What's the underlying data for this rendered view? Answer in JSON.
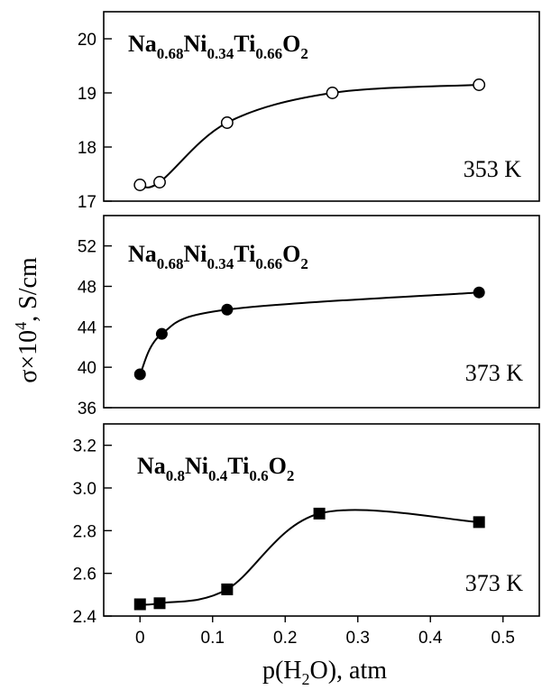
{
  "chart_data": [
    {
      "type": "scatter",
      "compound": {
        "base": [
          "Na",
          "Ni",
          "Ti",
          "O"
        ],
        "subs": [
          "0.68",
          "0.34",
          "0.66",
          "2"
        ]
      },
      "annotation": "353 K",
      "marker": "open-circle",
      "x": [
        0.0,
        0.027,
        0.12,
        0.265,
        0.467
      ],
      "y": [
        17.3,
        17.35,
        18.45,
        19.0,
        19.15
      ],
      "fit_curve": true,
      "xlim": [
        -0.05,
        0.55
      ],
      "ylim": [
        17,
        20.5
      ],
      "yticks": [
        17,
        18,
        19,
        20
      ],
      "ytick_labels": [
        "17",
        "18",
        "19",
        "20"
      ]
    },
    {
      "type": "scatter",
      "compound": {
        "base": [
          "Na",
          "Ni",
          "Ti",
          "O"
        ],
        "subs": [
          "0.68",
          "0.34",
          "0.66",
          "2"
        ]
      },
      "annotation": "373 K",
      "marker": "filled-circle",
      "x": [
        0.0,
        0.03,
        0.12,
        0.467
      ],
      "y": [
        39.3,
        43.3,
        45.7,
        47.4
      ],
      "fit_curve": true,
      "xlim": [
        -0.05,
        0.55
      ],
      "ylim": [
        36,
        55
      ],
      "yticks": [
        36,
        40,
        44,
        48,
        52
      ],
      "ytick_labels": [
        "36",
        "40",
        "44",
        "48",
        "52"
      ]
    },
    {
      "type": "scatter",
      "compound": {
        "base": [
          "Na",
          "Ni",
          "Ti",
          "O"
        ],
        "subs": [
          "0.8",
          "0.4",
          "0.6",
          "2"
        ]
      },
      "annotation": "373 K",
      "marker": "filled-square",
      "x": [
        0.0,
        0.027,
        0.12,
        0.247,
        0.467
      ],
      "y": [
        2.455,
        2.46,
        2.525,
        2.88,
        2.84
      ],
      "fit_curve": true,
      "xlim": [
        -0.05,
        0.55
      ],
      "ylim": [
        2.4,
        3.3
      ],
      "yticks": [
        2.4,
        2.6,
        2.8,
        3.0,
        3.2
      ],
      "ytick_labels": [
        "2.4",
        "2.6",
        "2.8",
        "3.0",
        "3.2"
      ],
      "xticks": [
        0,
        0.1,
        0.2,
        0.3,
        0.4,
        0.5
      ],
      "xtick_labels": [
        "0",
        "0.1",
        "0.2",
        "0.3",
        "0.4",
        "0.5"
      ]
    }
  ],
  "labels": {
    "ylabel_main": "σ×10",
    "ylabel_exp": "4",
    "ylabel_rest": ", S/cm",
    "xlabel_pre": "p(H",
    "xlabel_sub": "2",
    "xlabel_post": "O), atm"
  }
}
